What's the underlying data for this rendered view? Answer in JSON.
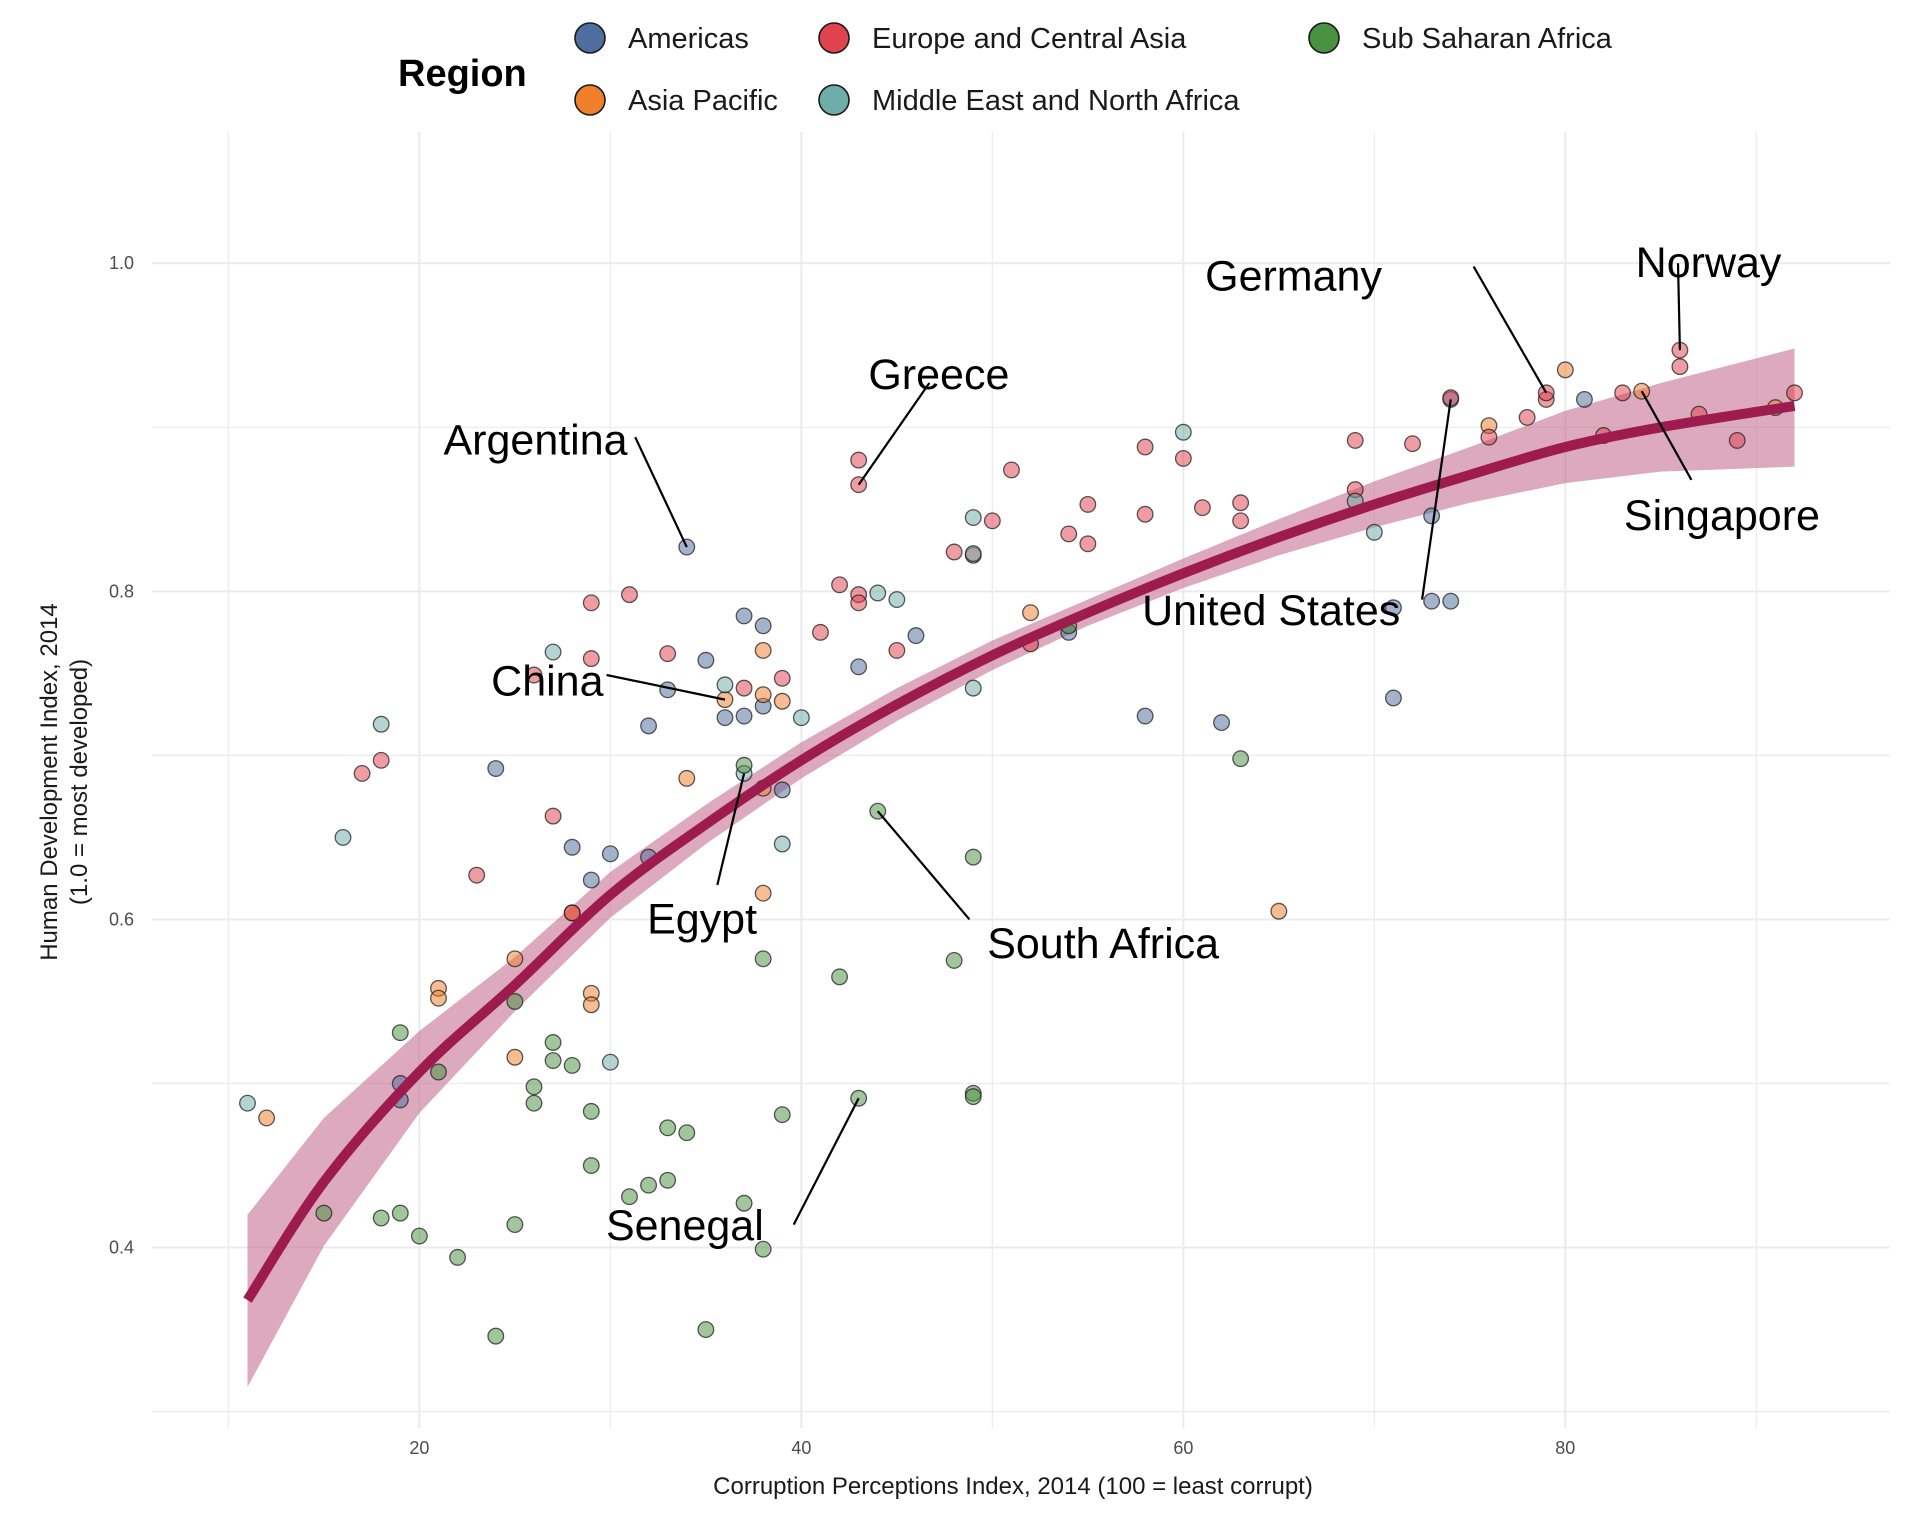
{
  "chart_data": {
    "type": "scatter",
    "title": "",
    "xlabel": "Corruption Perceptions Index, 2014 (100 = least corrupt)",
    "ylabel_line1": "Human Development Index, 2014",
    "ylabel_line2": "(1.0 = most developed)",
    "xlim": [
      6,
      97
    ],
    "ylim": [
      0.29,
      1.08
    ],
    "x_ticks": [
      20,
      40,
      60,
      80
    ],
    "x_tick_labels": [
      "20",
      "40",
      "60",
      "80"
    ],
    "y_ticks": [
      0.4,
      0.6,
      0.8,
      1.0
    ],
    "y_tick_labels": [
      "0.4",
      "0.6",
      "0.8",
      "1.0"
    ],
    "legend": {
      "title": "Region",
      "position": "top",
      "entries": [
        {
          "key": "Americas",
          "label": "Americas",
          "color": "#4E6E9E"
        },
        {
          "key": "Asia Pacific",
          "label": "Asia Pacific",
          "color": "#F07F2C"
        },
        {
          "key": "Europe and Central Asia",
          "label": "Europe and Central Asia",
          "color": "#E0434E"
        },
        {
          "key": "Middle East and North Africa",
          "label": "Middle East and North Africa",
          "color": "#6EADA8"
        },
        {
          "key": "Sub Saharan Africa",
          "label": "Sub Saharan Africa",
          "color": "#4A9241"
        }
      ]
    },
    "trend": {
      "type": "log",
      "color": "#9E1B4E",
      "band_color": "#C77595",
      "x": [
        11,
        15,
        20,
        25,
        30,
        35,
        40,
        45,
        50,
        55,
        60,
        65,
        70,
        75,
        80,
        85,
        92
      ],
      "y": [
        0.368,
        0.44,
        0.507,
        0.56,
        0.615,
        0.658,
        0.697,
        0.731,
        0.761,
        0.787,
        0.811,
        0.833,
        0.853,
        0.871,
        0.888,
        0.9,
        0.913
      ],
      "lower": [
        0.315,
        0.401,
        0.482,
        0.544,
        0.601,
        0.646,
        0.686,
        0.721,
        0.752,
        0.779,
        0.802,
        0.822,
        0.839,
        0.854,
        0.866,
        0.873,
        0.876
      ],
      "upper": [
        0.42,
        0.479,
        0.532,
        0.577,
        0.629,
        0.67,
        0.708,
        0.741,
        0.77,
        0.795,
        0.82,
        0.844,
        0.867,
        0.888,
        0.91,
        0.927,
        0.948
      ]
    },
    "series": [
      {
        "name": "Americas",
        "points": [
          [
            34,
            0.827
          ],
          [
            37,
            0.785
          ],
          [
            38,
            0.779
          ],
          [
            35,
            0.758
          ],
          [
            33,
            0.74
          ],
          [
            32,
            0.718
          ],
          [
            37,
            0.724
          ],
          [
            36,
            0.723
          ],
          [
            38,
            0.73
          ],
          [
            43,
            0.754
          ],
          [
            46,
            0.773
          ],
          [
            24,
            0.692
          ],
          [
            28,
            0.644
          ],
          [
            29,
            0.624
          ],
          [
            30,
            0.64
          ],
          [
            32,
            0.638
          ],
          [
            19,
            0.5
          ],
          [
            19,
            0.49
          ],
          [
            39,
            0.679
          ],
          [
            58,
            0.724
          ],
          [
            62,
            0.72
          ],
          [
            54,
            0.775
          ],
          [
            73,
            0.846
          ],
          [
            71,
            0.79
          ],
          [
            73,
            0.794
          ],
          [
            74,
            0.794
          ],
          [
            71,
            0.735
          ],
          [
            74,
            0.917
          ],
          [
            81,
            0.917
          ]
        ]
      },
      {
        "name": "Asia Pacific",
        "points": [
          [
            36,
            0.734
          ],
          [
            38,
            0.764
          ],
          [
            39,
            0.733
          ],
          [
            38,
            0.737
          ],
          [
            34,
            0.686
          ],
          [
            38,
            0.68
          ],
          [
            38,
            0.616
          ],
          [
            29,
            0.555
          ],
          [
            29,
            0.548
          ],
          [
            21,
            0.558
          ],
          [
            21,
            0.552
          ],
          [
            25,
            0.576
          ],
          [
            25,
            0.516
          ],
          [
            12,
            0.479
          ],
          [
            28,
            0.604
          ],
          [
            52,
            0.787
          ],
          [
            65,
            0.605
          ],
          [
            76,
            0.901
          ],
          [
            80,
            0.935
          ],
          [
            84,
            0.922
          ],
          [
            91,
            0.912
          ]
        ]
      },
      {
        "name": "Europe and Central Asia",
        "points": [
          [
            43,
            0.865
          ],
          [
            43,
            0.88
          ],
          [
            42,
            0.804
          ],
          [
            43,
            0.798
          ],
          [
            43,
            0.793
          ],
          [
            41,
            0.775
          ],
          [
            45,
            0.764
          ],
          [
            31,
            0.798
          ],
          [
            29,
            0.793
          ],
          [
            33,
            0.762
          ],
          [
            29,
            0.759
          ],
          [
            26,
            0.749
          ],
          [
            37,
            0.741
          ],
          [
            39,
            0.747
          ],
          [
            27,
            0.663
          ],
          [
            23,
            0.627
          ],
          [
            18,
            0.697
          ],
          [
            17,
            0.689
          ],
          [
            28,
            0.604
          ],
          [
            48,
            0.824
          ],
          [
            49,
            0.822
          ],
          [
            50,
            0.843
          ],
          [
            51,
            0.874
          ],
          [
            54,
            0.835
          ],
          [
            55,
            0.853
          ],
          [
            55,
            0.829
          ],
          [
            52,
            0.768
          ],
          [
            58,
            0.888
          ],
          [
            58,
            0.847
          ],
          [
            60,
            0.881
          ],
          [
            61,
            0.851
          ],
          [
            63,
            0.843
          ],
          [
            63,
            0.854
          ],
          [
            69,
            0.892
          ],
          [
            69,
            0.862
          ],
          [
            72,
            0.89
          ],
          [
            74,
            0.918
          ],
          [
            76,
            0.894
          ],
          [
            78,
            0.906
          ],
          [
            79,
            0.917
          ],
          [
            79,
            0.921
          ],
          [
            82,
            0.895
          ],
          [
            83,
            0.921
          ],
          [
            86,
            0.937
          ],
          [
            86,
            0.947
          ],
          [
            87,
            0.908
          ],
          [
            89,
            0.892
          ],
          [
            92,
            0.921
          ]
        ]
      },
      {
        "name": "Middle East and North Africa",
        "points": [
          [
            27,
            0.763
          ],
          [
            18,
            0.719
          ],
          [
            16,
            0.65
          ],
          [
            36,
            0.743
          ],
          [
            37,
            0.689
          ],
          [
            40,
            0.723
          ],
          [
            39,
            0.646
          ],
          [
            44,
            0.799
          ],
          [
            45,
            0.795
          ],
          [
            30,
            0.513
          ],
          [
            11,
            0.488
          ],
          [
            49,
            0.845
          ],
          [
            49,
            0.823
          ],
          [
            49,
            0.741
          ],
          [
            60,
            0.897
          ],
          [
            69,
            0.855
          ],
          [
            70,
            0.836
          ]
        ]
      },
      {
        "name": "Sub Saharan Africa",
        "points": [
          [
            37,
            0.694
          ],
          [
            44,
            0.666
          ],
          [
            49,
            0.638
          ],
          [
            38,
            0.576
          ],
          [
            42,
            0.565
          ],
          [
            48,
            0.575
          ],
          [
            25,
            0.55
          ],
          [
            19,
            0.531
          ],
          [
            21,
            0.507
          ],
          [
            27,
            0.525
          ],
          [
            27,
            0.514
          ],
          [
            28,
            0.511
          ],
          [
            26,
            0.498
          ],
          [
            26,
            0.488
          ],
          [
            29,
            0.483
          ],
          [
            29,
            0.45
          ],
          [
            39,
            0.481
          ],
          [
            43,
            0.491
          ],
          [
            49,
            0.494
          ],
          [
            49,
            0.492
          ],
          [
            33,
            0.473
          ],
          [
            34,
            0.47
          ],
          [
            31,
            0.431
          ],
          [
            32,
            0.438
          ],
          [
            33,
            0.441
          ],
          [
            37,
            0.427
          ],
          [
            15,
            0.421
          ],
          [
            18,
            0.418
          ],
          [
            19,
            0.421
          ],
          [
            20,
            0.407
          ],
          [
            22,
            0.394
          ],
          [
            25,
            0.414
          ],
          [
            38,
            0.399
          ],
          [
            24,
            0.346
          ],
          [
            35,
            0.35
          ],
          [
            54,
            0.779
          ],
          [
            63,
            0.698
          ]
        ]
      }
    ],
    "annotations": [
      {
        "label": "Norway",
        "point": [
          86,
          0.947
        ],
        "text_at": [
          87.5,
          1.0
        ],
        "line_to": [
          85.9,
          1.0
        ],
        "anchor": "middle"
      },
      {
        "label": "Germany",
        "point": [
          79,
          0.921
        ],
        "text_at": [
          70.4,
          0.992
        ],
        "line_to": [
          75.2,
          0.998
        ],
        "anchor": "end"
      },
      {
        "label": "Greece",
        "point": [
          43,
          0.865
        ],
        "text_at": [
          47.2,
          0.932
        ],
        "line_to": [
          46.7,
          0.927
        ],
        "anchor": "middle"
      },
      {
        "label": "Argentina",
        "point": [
          34,
          0.827
        ],
        "text_at": [
          30.9,
          0.892
        ],
        "line_to": [
          31.3,
          0.894
        ],
        "anchor": "end"
      },
      {
        "label": "Singapore",
        "point": [
          84,
          0.922
        ],
        "text_at": [
          88.2,
          0.846
        ],
        "line_to": [
          86.6,
          0.868
        ],
        "anchor": "middle"
      },
      {
        "label": "United States",
        "point": [
          74,
          0.917
        ],
        "text_at": [
          64.6,
          0.788
        ],
        "line_to": [
          72.5,
          0.795
        ],
        "anchor": "middle"
      },
      {
        "label": "China",
        "point": [
          36,
          0.734
        ],
        "text_at": [
          26.7,
          0.745
        ],
        "line_to": [
          29.8,
          0.749
        ],
        "anchor": "middle"
      },
      {
        "label": "Egypt",
        "point": [
          37,
          0.689
        ],
        "text_at": [
          34.8,
          0.6
        ],
        "line_to": [
          35.6,
          0.621
        ],
        "anchor": "middle"
      },
      {
        "label": "South Africa",
        "point": [
          44,
          0.666
        ],
        "text_at": [
          55.8,
          0.585
        ],
        "line_to": [
          48.8,
          0.6
        ],
        "anchor": "middle"
      },
      {
        "label": "Senegal",
        "point": [
          43,
          0.491
        ],
        "text_at": [
          33.9,
          0.413
        ],
        "line_to": [
          39.6,
          0.414
        ],
        "anchor": "middle"
      }
    ]
  }
}
